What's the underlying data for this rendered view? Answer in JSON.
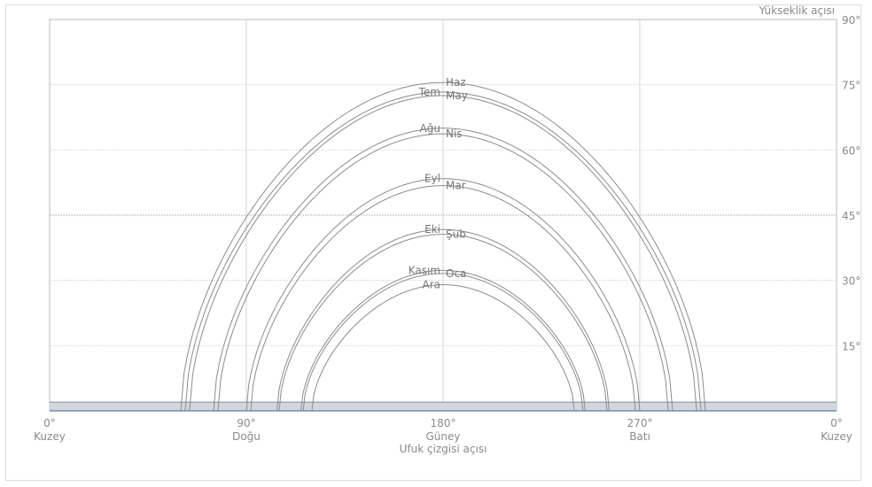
{
  "chart_data": {
    "type": "line",
    "title": "",
    "xlabel": "Ufuk çizgisi açısı",
    "ylabel": "Yükseklik açısı",
    "xlim": [
      0,
      360
    ],
    "ylim": [
      0,
      90
    ],
    "grid": true,
    "x_ticks": [
      {
        "value": 0,
        "deg": "0°",
        "name": "Kuzey"
      },
      {
        "value": 90,
        "deg": "90°",
        "name": "Doğu"
      },
      {
        "value": 180,
        "deg": "180°",
        "name": "Güney"
      },
      {
        "value": 270,
        "deg": "270°",
        "name": "Batı"
      },
      {
        "value": 360,
        "deg": "0°",
        "name": "Kuzey"
      }
    ],
    "y_ticks": [
      {
        "value": 15,
        "label": "15°"
      },
      {
        "value": 30,
        "label": "30°"
      },
      {
        "value": 45,
        "label": "45°"
      },
      {
        "value": 60,
        "label": "60°"
      },
      {
        "value": 75,
        "label": "75°"
      },
      {
        "value": 90,
        "label": "90°"
      }
    ],
    "horizon_band": [
      0,
      2
    ],
    "series": [
      {
        "name": "Haz",
        "max_alt": 75.5,
        "rise_az": 60,
        "set_az": 300,
        "label_side": "right"
      },
      {
        "name": "Tem",
        "max_alt": 73.3,
        "rise_az": 62,
        "set_az": 298,
        "label_side": "left"
      },
      {
        "name": "May",
        "max_alt": 72.5,
        "rise_az": 64,
        "set_az": 296,
        "label_side": "right"
      },
      {
        "name": "Ağu",
        "max_alt": 65.0,
        "rise_az": 75,
        "set_az": 285,
        "label_side": "left"
      },
      {
        "name": "Nis",
        "max_alt": 63.7,
        "rise_az": 77,
        "set_az": 283,
        "label_side": "right"
      },
      {
        "name": "Eyl",
        "max_alt": 53.4,
        "rise_az": 90,
        "set_az": 270,
        "label_side": "left"
      },
      {
        "name": "Mar",
        "max_alt": 51.8,
        "rise_az": 92,
        "set_az": 268,
        "label_side": "right"
      },
      {
        "name": "Eki",
        "max_alt": 41.7,
        "rise_az": 104,
        "set_az": 256,
        "label_side": "left"
      },
      {
        "name": "Şub",
        "max_alt": 40.6,
        "rise_az": 105,
        "set_az": 255,
        "label_side": "right"
      },
      {
        "name": "Kasım",
        "max_alt": 32.3,
        "rise_az": 115,
        "set_az": 245,
        "label_side": "left"
      },
      {
        "name": "Oca",
        "max_alt": 31.6,
        "rise_az": 116,
        "set_az": 244,
        "label_side": "right"
      },
      {
        "name": "Ara",
        "max_alt": 29.0,
        "rise_az": 120,
        "set_az": 240,
        "label_side": "left"
      }
    ],
    "colors": {
      "curve": "#8c8c8c",
      "grid_major": "#bbbbbb",
      "grid_minor": "#d4d4d4",
      "axis": "#8a8a8a",
      "horizon_fill": "#d2d7de",
      "horizon_line": "#7b8ea5"
    }
  }
}
